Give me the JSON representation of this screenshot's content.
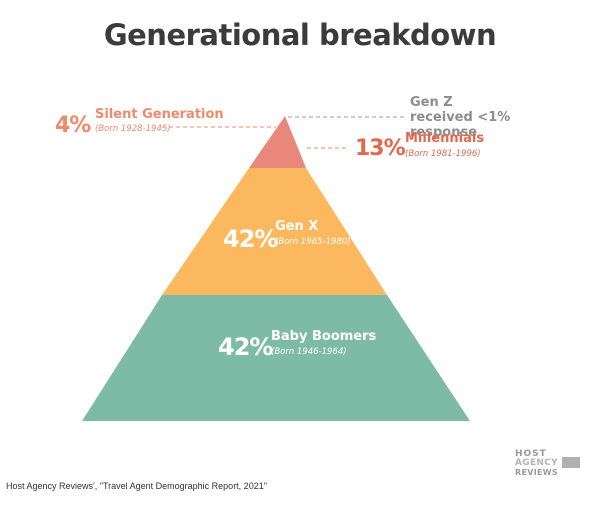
{
  "title": "Generational breakdown",
  "source": "Host Agency Reviews', \"Travel Agent Demographic Report, 2021\"",
  "logo": {
    "line1": "HOST",
    "line2": "AGENCY",
    "line3": "REVIEWS"
  },
  "colors": {
    "silent": "#f08a6c",
    "millennials": "#e9877a",
    "genx": "#fbb85e",
    "boomers": "#7dbba6",
    "dash": "#999999",
    "note": "#8d8d8d"
  },
  "chart_data": {
    "type": "pyramid",
    "title": "Generational breakdown",
    "segments": [
      {
        "name": "Silent Generation",
        "born": "(Born 1928-1945)",
        "value_label": "4%",
        "value": 4
      },
      {
        "name": "Millennials",
        "born": "(Born 1981-1996)",
        "value_label": "13%",
        "value": 13
      },
      {
        "name": "Gen X",
        "born": "(Born 1965-1980)",
        "value_label": "42%",
        "value": 42
      },
      {
        "name": "Baby Boomers",
        "born": "(Born 1946-1964)",
        "value_label": "42%",
        "value": 42
      }
    ],
    "annotation": "Gen Z received <1% response"
  }
}
